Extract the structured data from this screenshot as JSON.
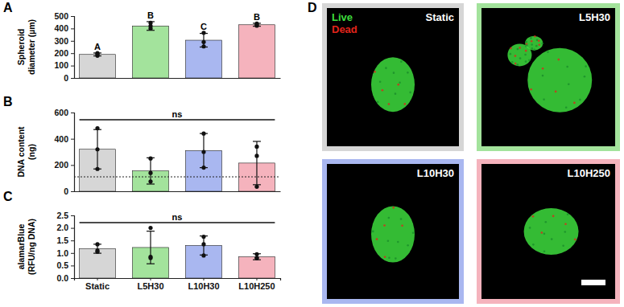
{
  "chart_data": [
    {
      "panel": "A",
      "type": "bar",
      "categories": [
        "Static",
        "L5H30",
        "L10H30",
        "L10H250"
      ],
      "values": [
        190,
        420,
        305,
        430
      ],
      "errors": [
        12,
        35,
        55,
        12
      ],
      "points": [
        [
          180,
          192,
          200
        ],
        [
          400,
          420,
          445
        ],
        [
          255,
          290,
          365
        ],
        [
          422,
          430,
          440
        ]
      ],
      "colors": [
        "#d6d6d6",
        "#a3e39c",
        "#a9b7f0",
        "#f5b3bd"
      ],
      "y_label": [
        "Spheroid",
        "diameter (µm)"
      ],
      "ylim": [
        0,
        500
      ],
      "yticks": [
        0,
        100,
        200,
        300,
        400,
        500
      ],
      "annotations": [
        "A",
        "B",
        "C",
        "B"
      ],
      "tick_labels": "y"
    },
    {
      "panel": "B",
      "type": "bar",
      "categories": [
        "Static",
        "L5H30",
        "L10H30",
        "L10H250"
      ],
      "values": [
        320,
        155,
        310,
        215
      ],
      "errors": [
        150,
        100,
        130,
        165
      ],
      "points": [
        [
          480,
          320,
          170
        ],
        [
          250,
          140,
          75
        ],
        [
          440,
          300,
          180
        ],
        [
          340,
          270,
          35
        ]
      ],
      "colors": [
        "#d6d6d6",
        "#a3e39c",
        "#a9b7f0",
        "#f5b3bd"
      ],
      "y_label": [
        "DNA content",
        "(ng)"
      ],
      "ylim": [
        0,
        600
      ],
      "yticks": [
        0,
        200,
        400,
        600
      ],
      "threshold": 110,
      "annotations": [
        "ns"
      ],
      "tick_labels": "y"
    },
    {
      "panel": "C",
      "type": "bar",
      "categories": [
        "Static",
        "L5H30",
        "L10H30",
        "L10H250"
      ],
      "values": [
        1.17,
        1.22,
        1.3,
        0.85
      ],
      "errors": [
        0.18,
        0.65,
        0.38,
        0.12
      ],
      "points": [
        [
          1.35,
          1.05,
          1.1
        ],
        [
          2.0,
          0.8,
          0.85
        ],
        [
          1.65,
          1.35,
          0.9
        ],
        [
          0.95,
          0.8,
          0.8
        ]
      ],
      "colors": [
        "#d6d6d6",
        "#a3e39c",
        "#a9b7f0",
        "#f5b3bd"
      ],
      "y_label": [
        "alamarBlue",
        "(RFU/ng DNA)"
      ],
      "ylim": [
        0,
        2.5
      ],
      "yticks": [
        {
          "value": 0,
          "label": "0.0"
        },
        0.5,
        {
          "value": 1,
          "label": "1.0"
        },
        1.5,
        {
          "value": 2,
          "label": "2.0"
        },
        2.5
      ],
      "annotations": [
        "ns"
      ]
    }
  ],
  "panel_d": {
    "panel": "D",
    "legend": [
      {
        "label": "Live",
        "color": "#3ddc3d"
      },
      {
        "label": "Dead",
        "color": "#e0241b"
      }
    ],
    "tiles": [
      {
        "label": "Static",
        "color": "#d6d6d6"
      },
      {
        "label": "L5H30",
        "color": "#a3e39c"
      },
      {
        "label": "L10H30",
        "color": "#a9b7f0"
      },
      {
        "label": "L10H250",
        "color": "#f5b3bd"
      }
    ]
  }
}
